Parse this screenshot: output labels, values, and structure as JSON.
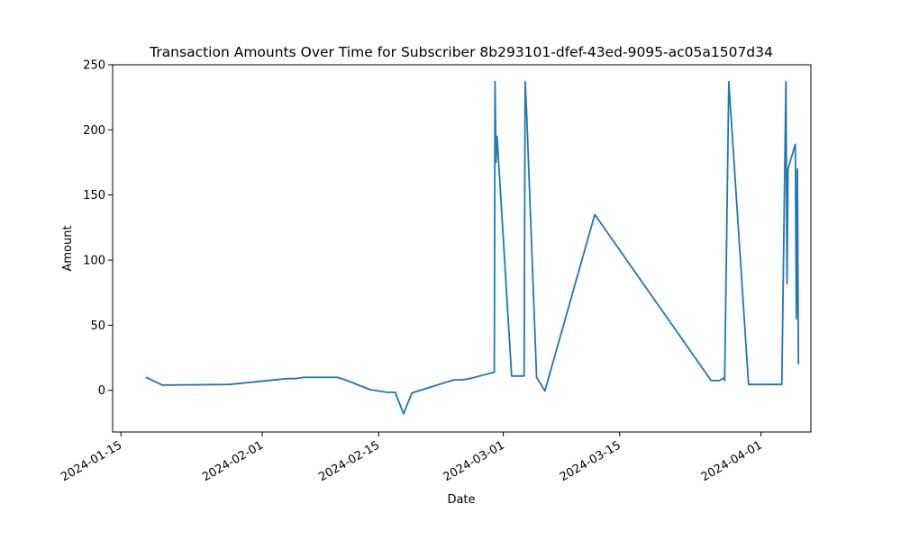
{
  "chart_data": {
    "type": "line",
    "title": "Transaction Amounts Over Time for Subscriber 8b293101-dfef-43ed-9095-ac05a1507d34",
    "xlabel": "Date",
    "ylabel": "Amount",
    "xlim": [
      "2024-01-14",
      "2024-04-07"
    ],
    "ylim": [
      -32,
      250
    ],
    "x_ticks": [
      "2024-01-15",
      "2024-02-01",
      "2024-02-15",
      "2024-03-01",
      "2024-03-15",
      "2024-04-01"
    ],
    "y_ticks": [
      0,
      50,
      100,
      150,
      200,
      250
    ],
    "grid": false,
    "line_color": "#1f77b4",
    "series": [
      {
        "name": "Amount",
        "x": [
          "2024-01-18",
          "2024-01-20",
          "2024-01-28",
          "2024-02-04",
          "2024-02-05",
          "2024-02-06",
          "2024-02-10",
          "2024-02-11",
          "2024-02-14",
          "2024-02-16",
          "2024-02-17",
          "2024-02-18",
          "2024-02-19",
          "2024-02-24",
          "2024-02-25",
          "2024-02-26",
          "2024-02-28 22:00",
          "2024-02-29 00:00",
          "2024-02-29 03:00",
          "2024-02-29 06:00",
          "2024-03-02",
          "2024-03-02 12:00",
          "2024-03-03 12:00",
          "2024-03-03 15:00",
          "2024-03-03 19:00",
          "2024-03-05",
          "2024-03-06",
          "2024-03-12",
          "2024-03-26",
          "2024-03-26 12:00",
          "2024-03-27",
          "2024-03-27 12:00",
          "2024-03-27 15:00",
          "2024-03-28 03:00",
          "2024-03-30 12:00",
          "2024-04-03 12:00",
          "2024-04-04",
          "2024-04-04 03:00",
          "2024-04-04 06:00",
          "2024-04-05 03:00",
          "2024-04-05 06:00",
          "2024-04-05 09:00",
          "2024-04-05 12:00"
        ],
        "y": [
          10,
          4,
          4.5,
          9,
          9,
          10,
          10,
          8,
          0.5,
          -1.5,
          -1.5,
          -18,
          -2,
          8,
          8,
          9,
          14,
          237,
          175,
          195,
          11,
          11,
          11,
          237,
          215,
          10,
          -0.5,
          135,
          7.5,
          7.5,
          7.5,
          9.5,
          7.5,
          237,
          4.5,
          4.5,
          237,
          82,
          170,
          189,
          55,
          170,
          20
        ]
      }
    ]
  }
}
